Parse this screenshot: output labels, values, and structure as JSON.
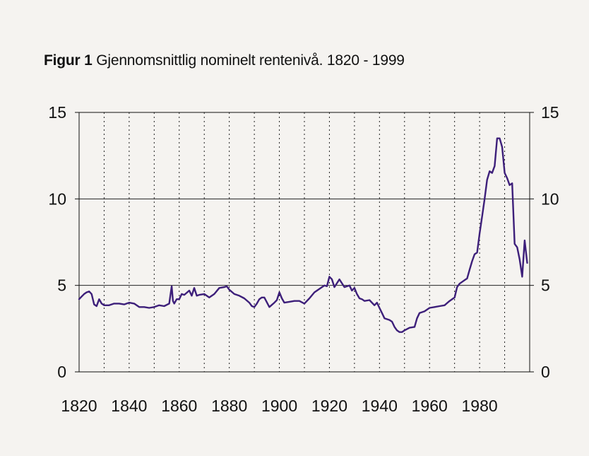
{
  "figure": {
    "label": "Figur 1",
    "title": "Gjennomsnittlig nominelt rentenivå. 1820 - 1999"
  },
  "colors": {
    "background": "#f5f3f0",
    "line": "#3d1f7a",
    "grid": "#222222"
  },
  "chart_data": {
    "type": "line",
    "title": "Gjennomsnittlig nominelt rentenivå. 1820 - 1999",
    "xlabel": "",
    "ylabel": "",
    "xlim": [
      1820,
      2000
    ],
    "ylim": [
      0,
      15
    ],
    "x_ticks": [
      1820,
      1840,
      1860,
      1880,
      1900,
      1920,
      1940,
      1960,
      1980
    ],
    "y_ticks": [
      0,
      5,
      10,
      15
    ],
    "y_ticks_right": [
      0,
      5,
      10,
      15
    ],
    "grid": "horizontal solid at 5,10; vertical dotted every 10 years",
    "series": [
      {
        "x": [
          1820,
          1821,
          1822,
          1823,
          1824,
          1825,
          1826,
          1827,
          1828,
          1829,
          1830,
          1832,
          1834,
          1836,
          1838,
          1840,
          1842,
          1844,
          1846,
          1848,
          1850,
          1852,
          1854,
          1856,
          1857,
          1857.5,
          1858,
          1859,
          1860,
          1861,
          1862,
          1864,
          1865,
          1866,
          1867,
          1868,
          1870,
          1872,
          1874,
          1876,
          1878,
          1879,
          1880,
          1882,
          1884,
          1886,
          1888,
          1889,
          1890,
          1891,
          1892,
          1893,
          1894,
          1896,
          1898,
          1899,
          1900,
          1901,
          1902,
          1904,
          1906,
          1908,
          1910,
          1912,
          1914,
          1916,
          1918,
          1919,
          1920,
          1921,
          1922,
          1924,
          1926,
          1928,
          1929,
          1930,
          1931,
          1932,
          1933,
          1934,
          1936,
          1938,
          1939,
          1940,
          1941,
          1942,
          1944,
          1945,
          1946,
          1947,
          1948,
          1949,
          1950,
          1952,
          1954,
          1955,
          1956,
          1958,
          1960,
          1962,
          1964,
          1966,
          1968,
          1970,
          1971,
          1972,
          1974,
          1975,
          1976,
          1977,
          1978,
          1979,
          1980,
          1981,
          1982,
          1983,
          1984,
          1985,
          1986,
          1987,
          1988,
          1989,
          1990,
          1991,
          1992,
          1993,
          1994,
          1995,
          1996,
          1997,
          1998,
          1999
        ],
        "y": [
          4.2,
          4.35,
          4.5,
          4.6,
          4.65,
          4.5,
          3.9,
          3.8,
          4.2,
          3.95,
          3.85,
          3.85,
          3.95,
          3.95,
          3.9,
          4.0,
          3.95,
          3.75,
          3.75,
          3.7,
          3.75,
          3.85,
          3.8,
          3.95,
          4.95,
          4.1,
          3.95,
          4.2,
          4.2,
          4.5,
          4.45,
          4.7,
          4.4,
          4.85,
          4.4,
          4.45,
          4.5,
          4.3,
          4.5,
          4.85,
          4.9,
          4.95,
          4.75,
          4.5,
          4.4,
          4.25,
          4.0,
          3.8,
          3.75,
          3.95,
          4.2,
          4.3,
          4.3,
          3.75,
          4.0,
          4.15,
          4.6,
          4.25,
          4.0,
          4.05,
          4.1,
          4.1,
          3.95,
          4.25,
          4.6,
          4.8,
          5.0,
          4.95,
          5.5,
          5.35,
          4.9,
          5.35,
          4.9,
          5.0,
          4.7,
          4.85,
          4.5,
          4.25,
          4.2,
          4.1,
          4.15,
          3.85,
          4.0,
          3.7,
          3.4,
          3.1,
          3.0,
          2.9,
          2.6,
          2.4,
          2.3,
          2.3,
          2.4,
          2.55,
          2.6,
          3.1,
          3.4,
          3.5,
          3.7,
          3.75,
          3.8,
          3.85,
          4.1,
          4.3,
          4.9,
          5.1,
          5.3,
          5.4,
          5.9,
          6.4,
          6.8,
          6.9,
          8.0,
          9.0,
          10.0,
          11.1,
          11.6,
          11.5,
          11.9,
          13.5,
          13.5,
          13.0,
          11.5,
          11.2,
          10.8,
          10.9,
          7.4,
          7.2,
          6.5,
          5.5,
          7.6,
          6.3
        ]
      }
    ]
  }
}
